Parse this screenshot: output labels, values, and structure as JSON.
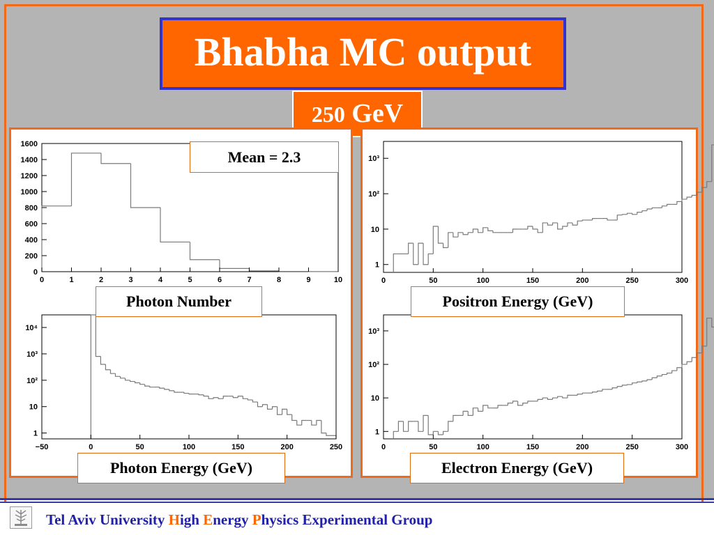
{
  "slide": {
    "title": "Bhabha MC output",
    "energy_number": "250",
    "energy_unit": "GeV",
    "mean_label": "Mean = 2.3",
    "labels": {
      "photon_number": "Photon Number",
      "positron_energy": "Positron Energy (GeV)",
      "photon_energy": "Photon Energy (GeV)",
      "electron_energy": "Electron Energy (GeV)"
    },
    "footer": {
      "part1": "Tel Aviv University ",
      "h": "H",
      "part2": "igh ",
      "e": "E",
      "part3": "nergy ",
      "p": "P",
      "part4": "hysics Experimental Group"
    },
    "colors": {
      "accent_orange": "#ff6600",
      "title_border_blue": "#3333cc",
      "footer_blue": "#2020a8",
      "background_gray": "#b4b4b4"
    },
    "icons": {
      "footer_logo": "university-emblem-icon"
    }
  },
  "chart_data": [
    {
      "id": "photon-number",
      "type": "bar",
      "yscale": "linear",
      "xlim": [
        0,
        10
      ],
      "ylim": [
        0,
        1600
      ],
      "xticks": [
        0,
        1,
        2,
        3,
        4,
        5,
        6,
        7,
        8,
        9,
        10
      ],
      "yticks": [
        0,
        200,
        400,
        600,
        800,
        1000,
        1200,
        1400,
        1600
      ],
      "xlabel": "Photon Number",
      "bins": [
        {
          "x0": 0,
          "x1": 1,
          "y": 820
        },
        {
          "x0": 1,
          "x1": 2,
          "y": 1480
        },
        {
          "x0": 2,
          "x1": 3,
          "y": 1350
        },
        {
          "x0": 3,
          "x1": 4,
          "y": 800
        },
        {
          "x0": 4,
          "x1": 5,
          "y": 370
        },
        {
          "x0": 5,
          "x1": 6,
          "y": 150
        },
        {
          "x0": 6,
          "x1": 7,
          "y": 40
        },
        {
          "x0": 7,
          "x1": 8,
          "y": 10
        },
        {
          "x0": 8,
          "x1": 9,
          "y": 3
        },
        {
          "x0": 9,
          "x1": 10,
          "y": 1
        }
      ],
      "annotation": "Mean = 2.3"
    },
    {
      "id": "positron-energy",
      "type": "bar",
      "yscale": "log",
      "xlim": [
        0,
        300
      ],
      "ylim": [
        0.6,
        3000
      ],
      "xticks": [
        0,
        50,
        100,
        150,
        200,
        250,
        300
      ],
      "yticks": [
        1,
        10,
        100,
        1000
      ],
      "ytick_labels": [
        "1",
        "10",
        "10²",
        "10³"
      ],
      "xlabel": "Positron Energy (GeV)",
      "start": 10,
      "width": 5,
      "values": [
        2,
        2,
        2,
        4,
        1,
        4,
        1,
        2,
        12,
        4,
        3,
        8,
        6,
        8,
        7,
        8,
        10,
        8,
        11,
        9,
        8,
        8,
        8,
        8,
        10,
        10,
        10,
        12,
        10,
        8,
        15,
        13,
        15,
        10,
        12,
        15,
        13,
        17,
        18,
        18,
        20,
        20,
        20,
        18,
        18,
        25,
        26,
        28,
        26,
        30,
        33,
        37,
        40,
        40,
        45,
        50,
        50,
        60,
        70,
        80,
        90,
        110,
        150,
        220,
        2400,
        1200
      ]
    },
    {
      "id": "photon-energy",
      "type": "bar",
      "yscale": "log",
      "xlim": [
        -50,
        250
      ],
      "ylim": [
        0.6,
        30000
      ],
      "xticks": [
        -50,
        0,
        50,
        100,
        150,
        200,
        250
      ],
      "yticks": [
        1,
        10,
        100,
        1000,
        10000
      ],
      "ytick_labels": [
        "1",
        "10",
        "10²",
        "10³",
        "10⁴"
      ],
      "xlabel": "Photon Energy (GeV)",
      "start": 0,
      "width": 5,
      "values": [
        30000,
        800,
        400,
        250,
        180,
        140,
        120,
        100,
        90,
        80,
        70,
        60,
        55,
        55,
        50,
        45,
        40,
        35,
        35,
        32,
        30,
        30,
        28,
        25,
        20,
        22,
        20,
        25,
        25,
        22,
        25,
        20,
        18,
        15,
        10,
        12,
        8,
        10,
        5,
        8,
        5,
        3,
        2,
        3,
        3,
        2,
        3,
        1,
        0.8,
        0.8
      ]
    },
    {
      "id": "electron-energy",
      "type": "bar",
      "yscale": "log",
      "xlim": [
        0,
        300
      ],
      "ylim": [
        0.6,
        3000
      ],
      "xticks": [
        0,
        50,
        100,
        150,
        200,
        250,
        300
      ],
      "yticks": [
        1,
        10,
        100,
        1000
      ],
      "ytick_labels": [
        "1",
        "10",
        "10²",
        "10³"
      ],
      "xlabel": "Electron Energy (GeV)",
      "start": 10,
      "width": 5,
      "values": [
        1,
        2,
        1,
        2,
        2,
        1,
        3,
        0.8,
        1,
        0.8,
        1,
        2,
        3,
        3,
        4,
        3,
        5,
        4,
        6,
        5,
        5,
        6,
        6,
        7,
        8,
        6,
        7,
        8,
        8,
        9,
        10,
        9,
        10,
        11,
        10,
        12,
        12,
        13,
        14,
        14,
        15,
        16,
        18,
        18,
        20,
        22,
        24,
        25,
        28,
        30,
        32,
        35,
        40,
        45,
        50,
        55,
        65,
        80,
        100,
        120,
        160,
        220,
        350,
        2400,
        1300
      ]
    }
  ]
}
